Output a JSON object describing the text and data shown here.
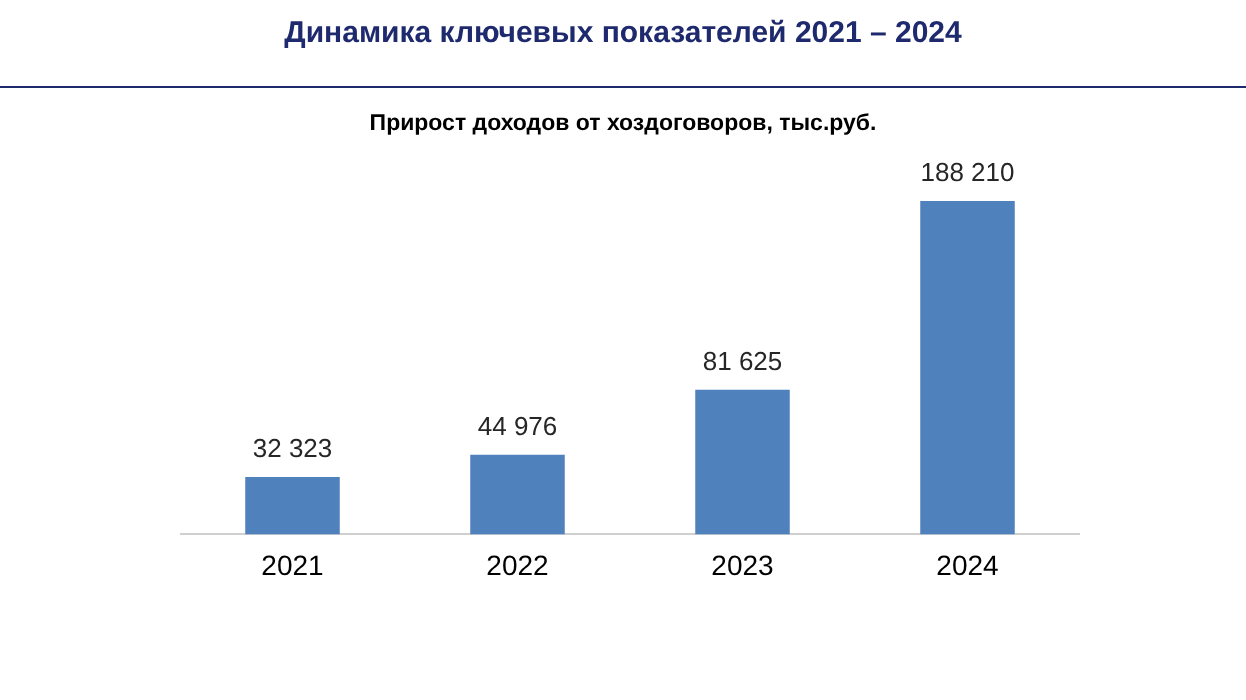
{
  "chart_data": {
    "type": "bar",
    "title": "Динамика ключевых показателей 2021 – 2024",
    "subtitle": "Прирост доходов от хоздоговоров, тыс.руб.",
    "categories": [
      "2021",
      "2022",
      "2023",
      "2024"
    ],
    "values": [
      32323,
      44976,
      81625,
      188210
    ],
    "value_labels": [
      "32 323",
      "44 976",
      "81 625",
      "188 210"
    ],
    "color": "#4f81bd",
    "grid": false,
    "legend": false
  }
}
